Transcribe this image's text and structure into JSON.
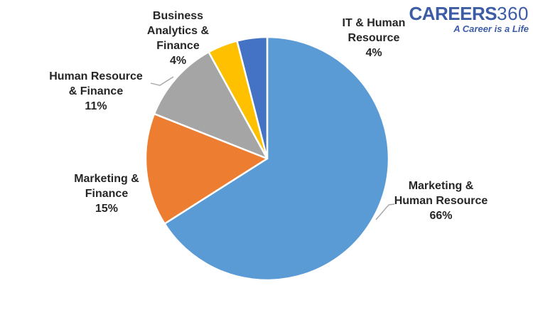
{
  "logo": {
    "brand_bold": "CAREERS",
    "brand_light": "360",
    "tagline": "A Career is a Life",
    "color": "#3c5ca5"
  },
  "chart_data": {
    "type": "pie",
    "title": "",
    "legend": "none",
    "background": "#FFFFFF",
    "start_angle_deg": -90,
    "direction": "clockwise",
    "categories": [
      "Marketing & Human Resource",
      "Marketing & Finance",
      "Human Resource & Finance",
      "Business Analytics & Finance",
      "IT & Human Resource"
    ],
    "values": [
      66,
      15,
      11,
      4,
      4
    ],
    "slices": [
      {
        "label": "Marketing & Human Resource",
        "value": 66,
        "percent_text": "66%",
        "color": "#5B9BD5",
        "label_text": "Marketing &\nHuman Resource\n66%"
      },
      {
        "label": "Marketing & Finance",
        "value": 15,
        "percent_text": "15%",
        "color": "#ED7D31",
        "label_text": "Marketing &\nFinance\n15%"
      },
      {
        "label": "Human Resource & Finance",
        "value": 11,
        "percent_text": "11%",
        "color": "#A5A5A5",
        "label_text": "Human Resource\n& Finance\n11%"
      },
      {
        "label": "Business Analytics & Finance",
        "value": 4,
        "percent_text": "4%",
        "color": "#FFC000",
        "label_text": "Business\nAnalytics &\nFinance\n4%"
      },
      {
        "label": "IT & Human Resource",
        "value": 4,
        "percent_text": "4%",
        "color": "#4472C4",
        "label_text": "IT & Human\nResource\n4%"
      }
    ],
    "colors": {
      "slice_border": "#FFFFFF",
      "leader_line": "#A6A6A6",
      "label_text": "#262626"
    }
  }
}
